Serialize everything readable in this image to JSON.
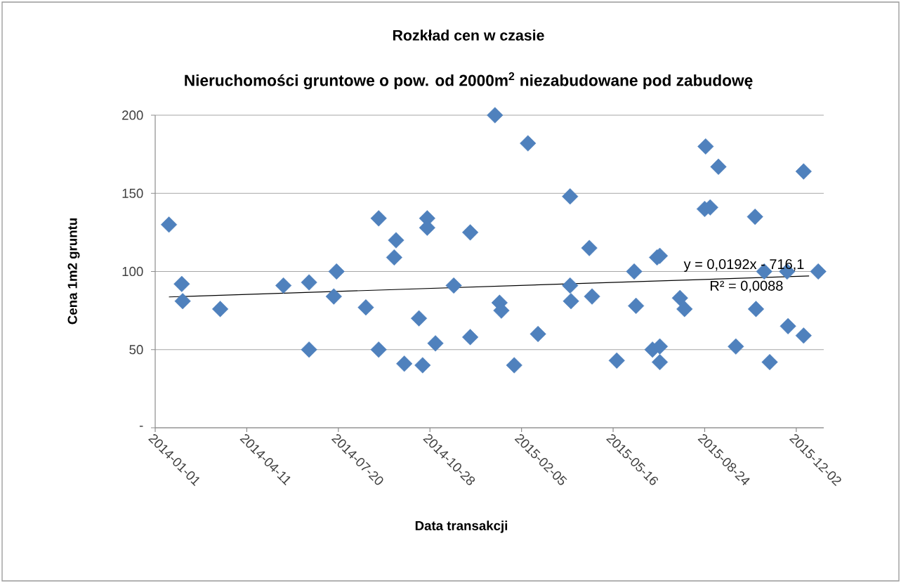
{
  "chart_data": {
    "type": "scatter",
    "title": "Rozkład cen w czasie",
    "subtitle": "Nieruchomości gruntowe o pow. od 2000m$^{2}$ niezabudowane pod zabudowę",
    "xlabel": "Data transakcji",
    "ylabel": "Cena 1m2 gruntu",
    "annotations": [
      "y = 0,0192x - 716,1",
      "R² = 0,0088"
    ],
    "series": [
      {
        "type": "scatter",
        "color": "#4f81bd",
        "marker": "diamond",
        "x": [
          "2014-01-16",
          "2014-01-30",
          "2014-01-31",
          "2014-03-13",
          "2014-05-21",
          "2014-06-18",
          "2014-06-18",
          "2014-07-15",
          "2014-07-18",
          "2014-08-19",
          "2014-09-02",
          "2014-09-02",
          "2014-09-19",
          "2014-09-21",
          "2014-09-30",
          "2014-10-16",
          "2014-10-20",
          "2014-10-25",
          "2014-10-25",
          "2014-11-03",
          "2014-11-23",
          "2014-12-11",
          "2014-12-11",
          "2015-01-07",
          "2015-01-12",
          "2015-01-14",
          "2015-01-28",
          "2015-02-12",
          "2015-02-23",
          "2015-03-30",
          "2015-03-30",
          "2015-03-31",
          "2015-04-20",
          "2015-04-23",
          "2015-05-20",
          "2015-06-08",
          "2015-06-10",
          "2015-06-28",
          "2015-07-03",
          "2015-07-06",
          "2015-07-06",
          "2015-07-06",
          "2015-07-28",
          "2015-08-02",
          "2015-08-24",
          "2015-08-25",
          "2015-08-30",
          "2015-09-08",
          "2015-09-27",
          "2015-10-18",
          "2015-10-19",
          "2015-10-28",
          "2015-11-03",
          "2015-11-22",
          "2015-11-23",
          "2015-12-10",
          "2015-12-10",
          "2015-12-26"
        ],
        "values": [
          130,
          92,
          81,
          76,
          91,
          93,
          50,
          84,
          100,
          77,
          134,
          50,
          109,
          120,
          41,
          70,
          40,
          134,
          128,
          54,
          91,
          125,
          58,
          200,
          80,
          75,
          40,
          182,
          60,
          148,
          91,
          81,
          115,
          84,
          43,
          100,
          78,
          50,
          109,
          110,
          52,
          42,
          83,
          76,
          140,
          180,
          141,
          167,
          52,
          135,
          76,
          100,
          42,
          100,
          65,
          59,
          164,
          100
        ]
      },
      {
        "type": "line",
        "color": "#000000",
        "marker": "none",
        "line_style": "solid",
        "x": [
          "2014-01-16",
          "2015-12-16"
        ],
        "values": [
          83.7,
          97.1
        ]
      }
    ],
    "xlim": [
      "2014-01-01",
      "2016-01-01"
    ],
    "xticks": [
      "2014-01-01",
      "2014-04-11",
      "2014-07-20",
      "2014-10-28",
      "2015-02-05",
      "2015-05-16",
      "2015-08-24",
      "2015-12-02"
    ],
    "ylim": [
      0,
      200
    ],
    "yticks": [
      {
        "value": 0,
        "label": "-"
      },
      50,
      100,
      150,
      200
    ],
    "grid": "y",
    "legend": false
  }
}
